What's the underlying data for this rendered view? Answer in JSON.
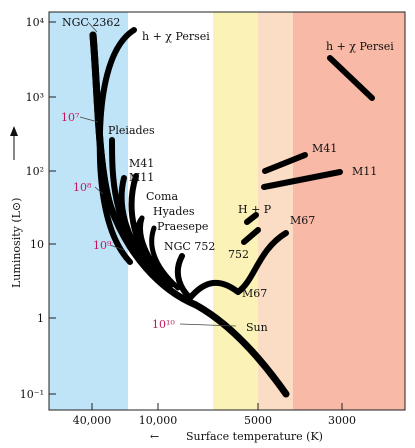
{
  "chart_data": {
    "type": "line",
    "title": "",
    "xlabel": "Surface temperature (K)",
    "ylabel": "Luminosity (L⊙)",
    "x_scale": "temperature, decreasing to the right",
    "y_scale": "log",
    "x_ticks": [
      "40,000",
      "10,000",
      "5000",
      "3000"
    ],
    "y_ticks": [
      "10⁻¹",
      "1",
      "10",
      "10²",
      "10³",
      "10⁴"
    ],
    "background_bands": [
      {
        "color": "#bfe3f7"
      },
      {
        "color": "#ffffff"
      },
      {
        "color": "#fbf2b8"
      },
      {
        "color": "#fbdcc4"
      },
      {
        "color": "#f8b9a7"
      }
    ],
    "series": [
      {
        "name": "NGC 2362"
      },
      {
        "name": "h + χ Persei"
      },
      {
        "name": "Pleiades"
      },
      {
        "name": "M41"
      },
      {
        "name": "M11"
      },
      {
        "name": "Coma"
      },
      {
        "name": "Hyades"
      },
      {
        "name": "Praesepe"
      },
      {
        "name": "NGC 752"
      },
      {
        "name": "M67"
      }
    ],
    "annotations": {
      "cluster_labels": [
        {
          "key": "ngc2362",
          "text": "NGC 2362"
        },
        {
          "key": "hchi",
          "text": "h + χ Persei"
        },
        {
          "key": "hchi_giant",
          "text": "h + χ Persei"
        },
        {
          "key": "pleiades",
          "text": "Pleiades"
        },
        {
          "key": "m41",
          "text": "M41"
        },
        {
          "key": "m11",
          "text": "M11"
        },
        {
          "key": "m41_giant",
          "text": "M41"
        },
        {
          "key": "m11_giant",
          "text": "M11"
        },
        {
          "key": "coma",
          "text": "Coma"
        },
        {
          "key": "hyades",
          "text": "Hyades"
        },
        {
          "key": "praesepe",
          "text": "Praesepe"
        },
        {
          "key": "ngc752",
          "text": "NGC 752"
        },
        {
          "key": "hp",
          "text": "H + P"
        },
        {
          "key": "m67_giant",
          "text": "M67"
        },
        {
          "key": "n752_giant",
          "text": "752"
        },
        {
          "key": "m67",
          "text": "M67"
        },
        {
          "key": "sun",
          "text": "Sun"
        }
      ],
      "age_labels": [
        {
          "key": "a7",
          "text": "10⁷"
        },
        {
          "key": "a8",
          "text": "10⁸"
        },
        {
          "key": "a9",
          "text": "10⁹"
        },
        {
          "key": "a10",
          "text": "10¹⁰"
        }
      ],
      "arrow_label": "←"
    }
  }
}
